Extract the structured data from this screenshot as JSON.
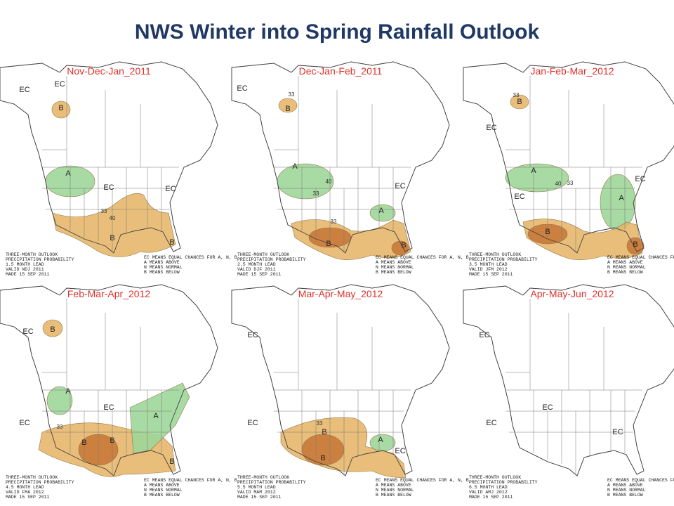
{
  "title": "NWS Winter into Spring Rainfall Outlook",
  "panels": [
    {
      "title": "Nov-Dec-Jan_2011",
      "legend": [
        "THREE-MONTH OUTLOOK",
        "PRECIPITATION PROBABILITY",
        "1.5 MONTH LEAD",
        "VALID NDJ 2011",
        "MADE 15 SEP 2011"
      ],
      "key": [
        "EC MEANS EQUAL CHANCES FOR A, N, B",
        "A MEANS ABOVE",
        "N MEANS NORMAL",
        "B MEANS BELOW"
      ],
      "labels": [
        "EC",
        "EC",
        "B",
        "A",
        "EC",
        "EC",
        "33",
        "40",
        "B",
        "B"
      ]
    },
    {
      "title": "Dec-Jan-Feb_2011",
      "legend": [
        "THREE-MONTH OUTLOOK",
        "PRECIPITATION PROBABILITY",
        "2.5 MONTH LEAD",
        "VALID DJF 2011",
        "MADE 15 SEP 2011"
      ],
      "key": [
        "EC MEANS EQUAL CHANCES FOR A, N, B",
        "A MEANS ABOVE",
        "N MEANS NORMAL",
        "B MEANS BELOW"
      ],
      "labels": [
        "EC",
        "33",
        "B",
        "A",
        "40",
        "33",
        "EC",
        "A",
        "33",
        "B",
        "B"
      ]
    },
    {
      "title": "Jan-Feb-Mar_2012",
      "legend": [
        "THREE-MONTH OUTLOOK",
        "PRECIPITATION PROBABILITY",
        "3.5 MONTH LEAD",
        "VALID JFM 2012",
        "MADE 15 SEP 2011"
      ],
      "key": [
        "EC MEANS EQUAL CHANCES FOR A, N, B",
        "A MEANS ABOVE",
        "N MEANS NORMAL",
        "B MEANS BELOW"
      ],
      "labels": [
        "EC",
        "33",
        "B",
        "A",
        "40",
        "33",
        "EC",
        "EC",
        "A",
        "B",
        "B"
      ]
    },
    {
      "title": "Feb-Mar-Apr_2012",
      "legend": [
        "THREE-MONTH OUTLOOK",
        "PRECIPITATION PROBABILITY",
        "4.5 MONTH LEAD",
        "VALID FMA 2012",
        "MADE 15 SEP 2011"
      ],
      "key": [
        "EC MEANS EQUAL CHANCES FOR A, N, B",
        "A MEANS ABOVE",
        "N MEANS NORMAL",
        "B MEANS BELOW"
      ],
      "labels": [
        "EC",
        "B",
        "EC",
        "A",
        "EC",
        "A",
        "33",
        "B",
        "B",
        "B"
      ]
    },
    {
      "title": "Mar-Apr-May_2012",
      "legend": [
        "THREE-MONTH OUTLOOK",
        "PRECIPITATION PROBABILITY",
        "5.5 MONTH LEAD",
        "VALID MAM 2012",
        "MADE 15 SEP 2011"
      ],
      "key": [
        "EC MEANS EQUAL CHANCES FOR A, N, B",
        "A MEANS ABOVE",
        "N MEANS NORMAL",
        "B MEANS BELOW"
      ],
      "labels": [
        "EC",
        "EC",
        "B",
        "33",
        "B",
        "A",
        "EC"
      ]
    },
    {
      "title": "Apr-May-Jun_2012",
      "legend": [
        "THREE-MONTH OUTLOOK",
        "PRECIPITATION PROBABILITY",
        "6.5 MONTH LEAD",
        "VALID AMJ 2012",
        "MADE 15 SEP 2011"
      ],
      "key": [
        "EC MEANS EQUAL CHANCES FOR A, N, B",
        "A MEANS ABOVE",
        "N MEANS NORMAL",
        "B MEANS BELOW"
      ],
      "labels": [
        "EC",
        "EC",
        "EC",
        "EC"
      ]
    }
  ]
}
